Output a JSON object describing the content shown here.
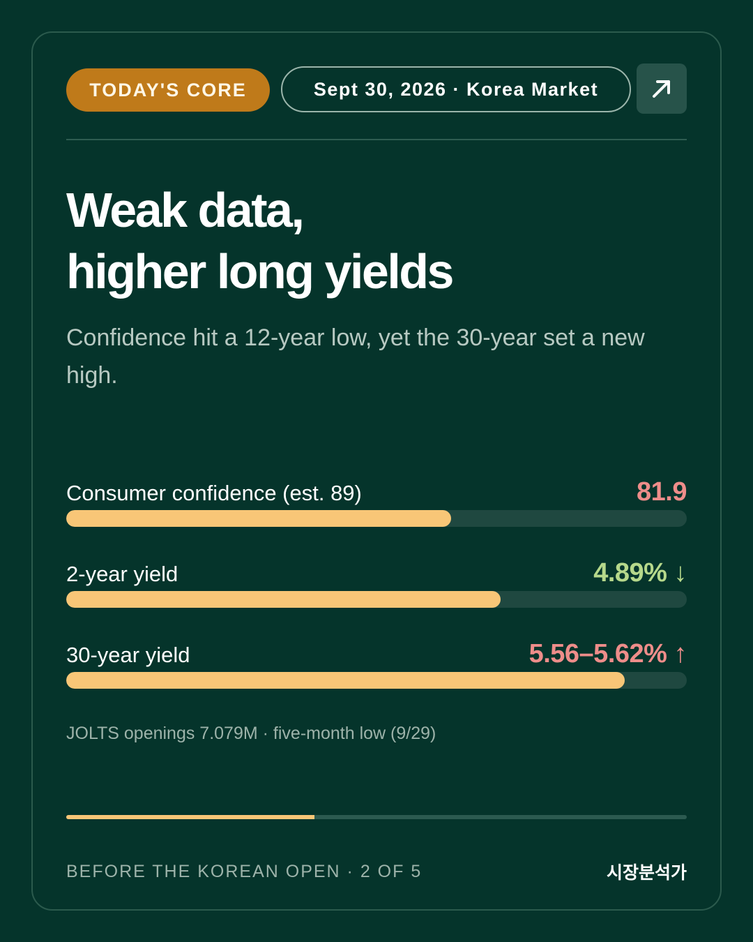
{
  "header": {
    "badge_label": "TODAY'S CORE",
    "date_label": "Sept 30, 2026 · Korea Market",
    "open_icon": "arrow-up-right-icon"
  },
  "headline": {
    "line1": "Weak data,",
    "line2": "higher long yields",
    "subtitle": "Confidence hit a 12-year low, yet the 30-year set a new high."
  },
  "metrics": [
    {
      "label": "Consumer confidence (est. 89)",
      "value": "81.9",
      "arrow": "",
      "color": "#ee8d8a",
      "fill_fraction": 0.62
    },
    {
      "label": "2-year yield",
      "value": "4.89%",
      "arrow": "↓",
      "color": "#b6d88b",
      "fill_fraction": 0.7
    },
    {
      "label": "30-year yield",
      "value": "5.56–5.62%",
      "arrow": "↑",
      "color": "#ee8d8a",
      "fill_fraction": 0.9
    }
  ],
  "note": "JOLTS openings 7.079M · five-month low (9/29)",
  "progress": {
    "current": 2,
    "total": 5
  },
  "footer": {
    "left": "BEFORE THE KOREAN OPEN · 2 OF 5",
    "brand": "시장분석가"
  }
}
